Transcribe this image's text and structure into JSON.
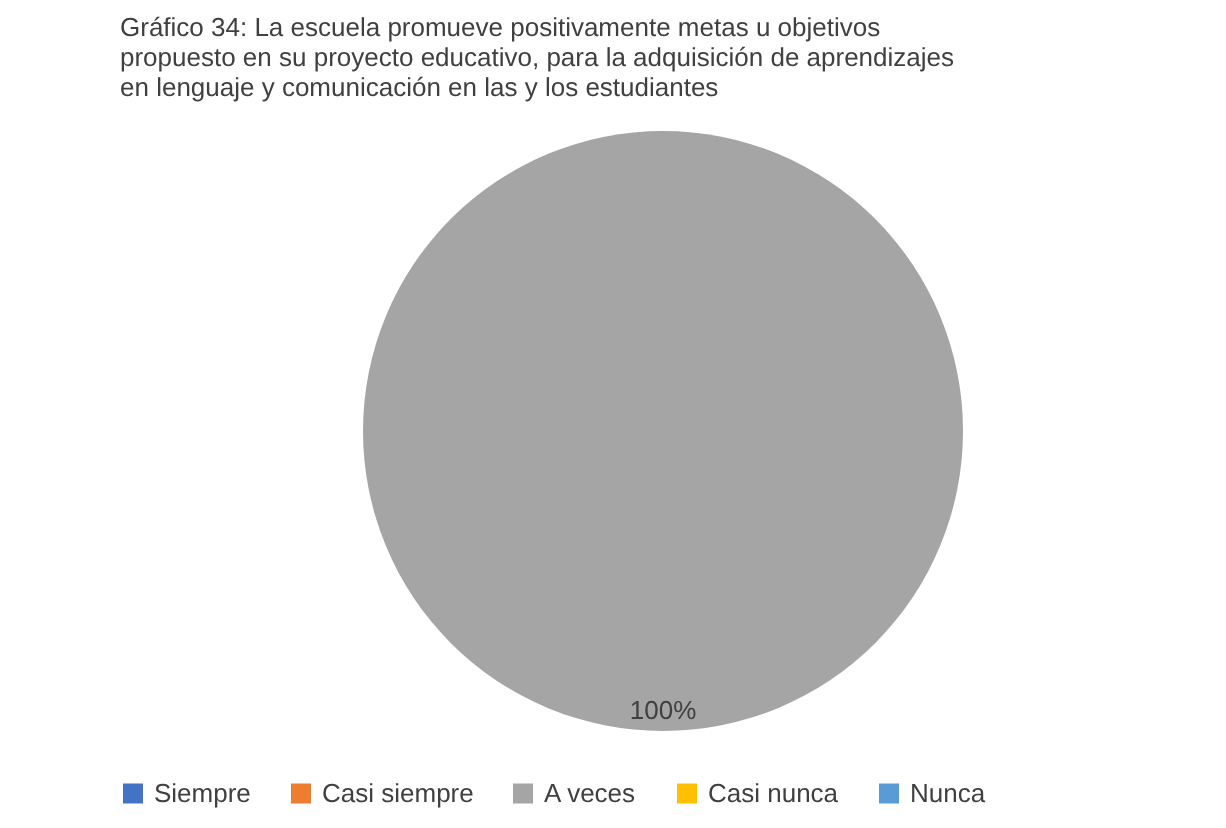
{
  "chart_data": {
    "type": "pie",
    "title": [
      "Gráfico 34: La escuela promueve positivamente metas u objetivos",
      "propuesto en su proyecto educativo, para la adquisición de aprendizajes",
      "en lenguaje y comunicación en las y los estudiantes"
    ],
    "categories": [
      "Siempre",
      "Casi siempre",
      "A veces",
      "Casi nunca",
      "Nunca"
    ],
    "values": [
      0,
      0,
      100,
      0,
      0
    ],
    "colors": [
      "#4472c4",
      "#ed7d31",
      "#a5a5a5",
      "#ffc000",
      "#5b9bd5"
    ],
    "value_labels": [
      null,
      null,
      "100%",
      null,
      null
    ],
    "legend": "bottom"
  }
}
